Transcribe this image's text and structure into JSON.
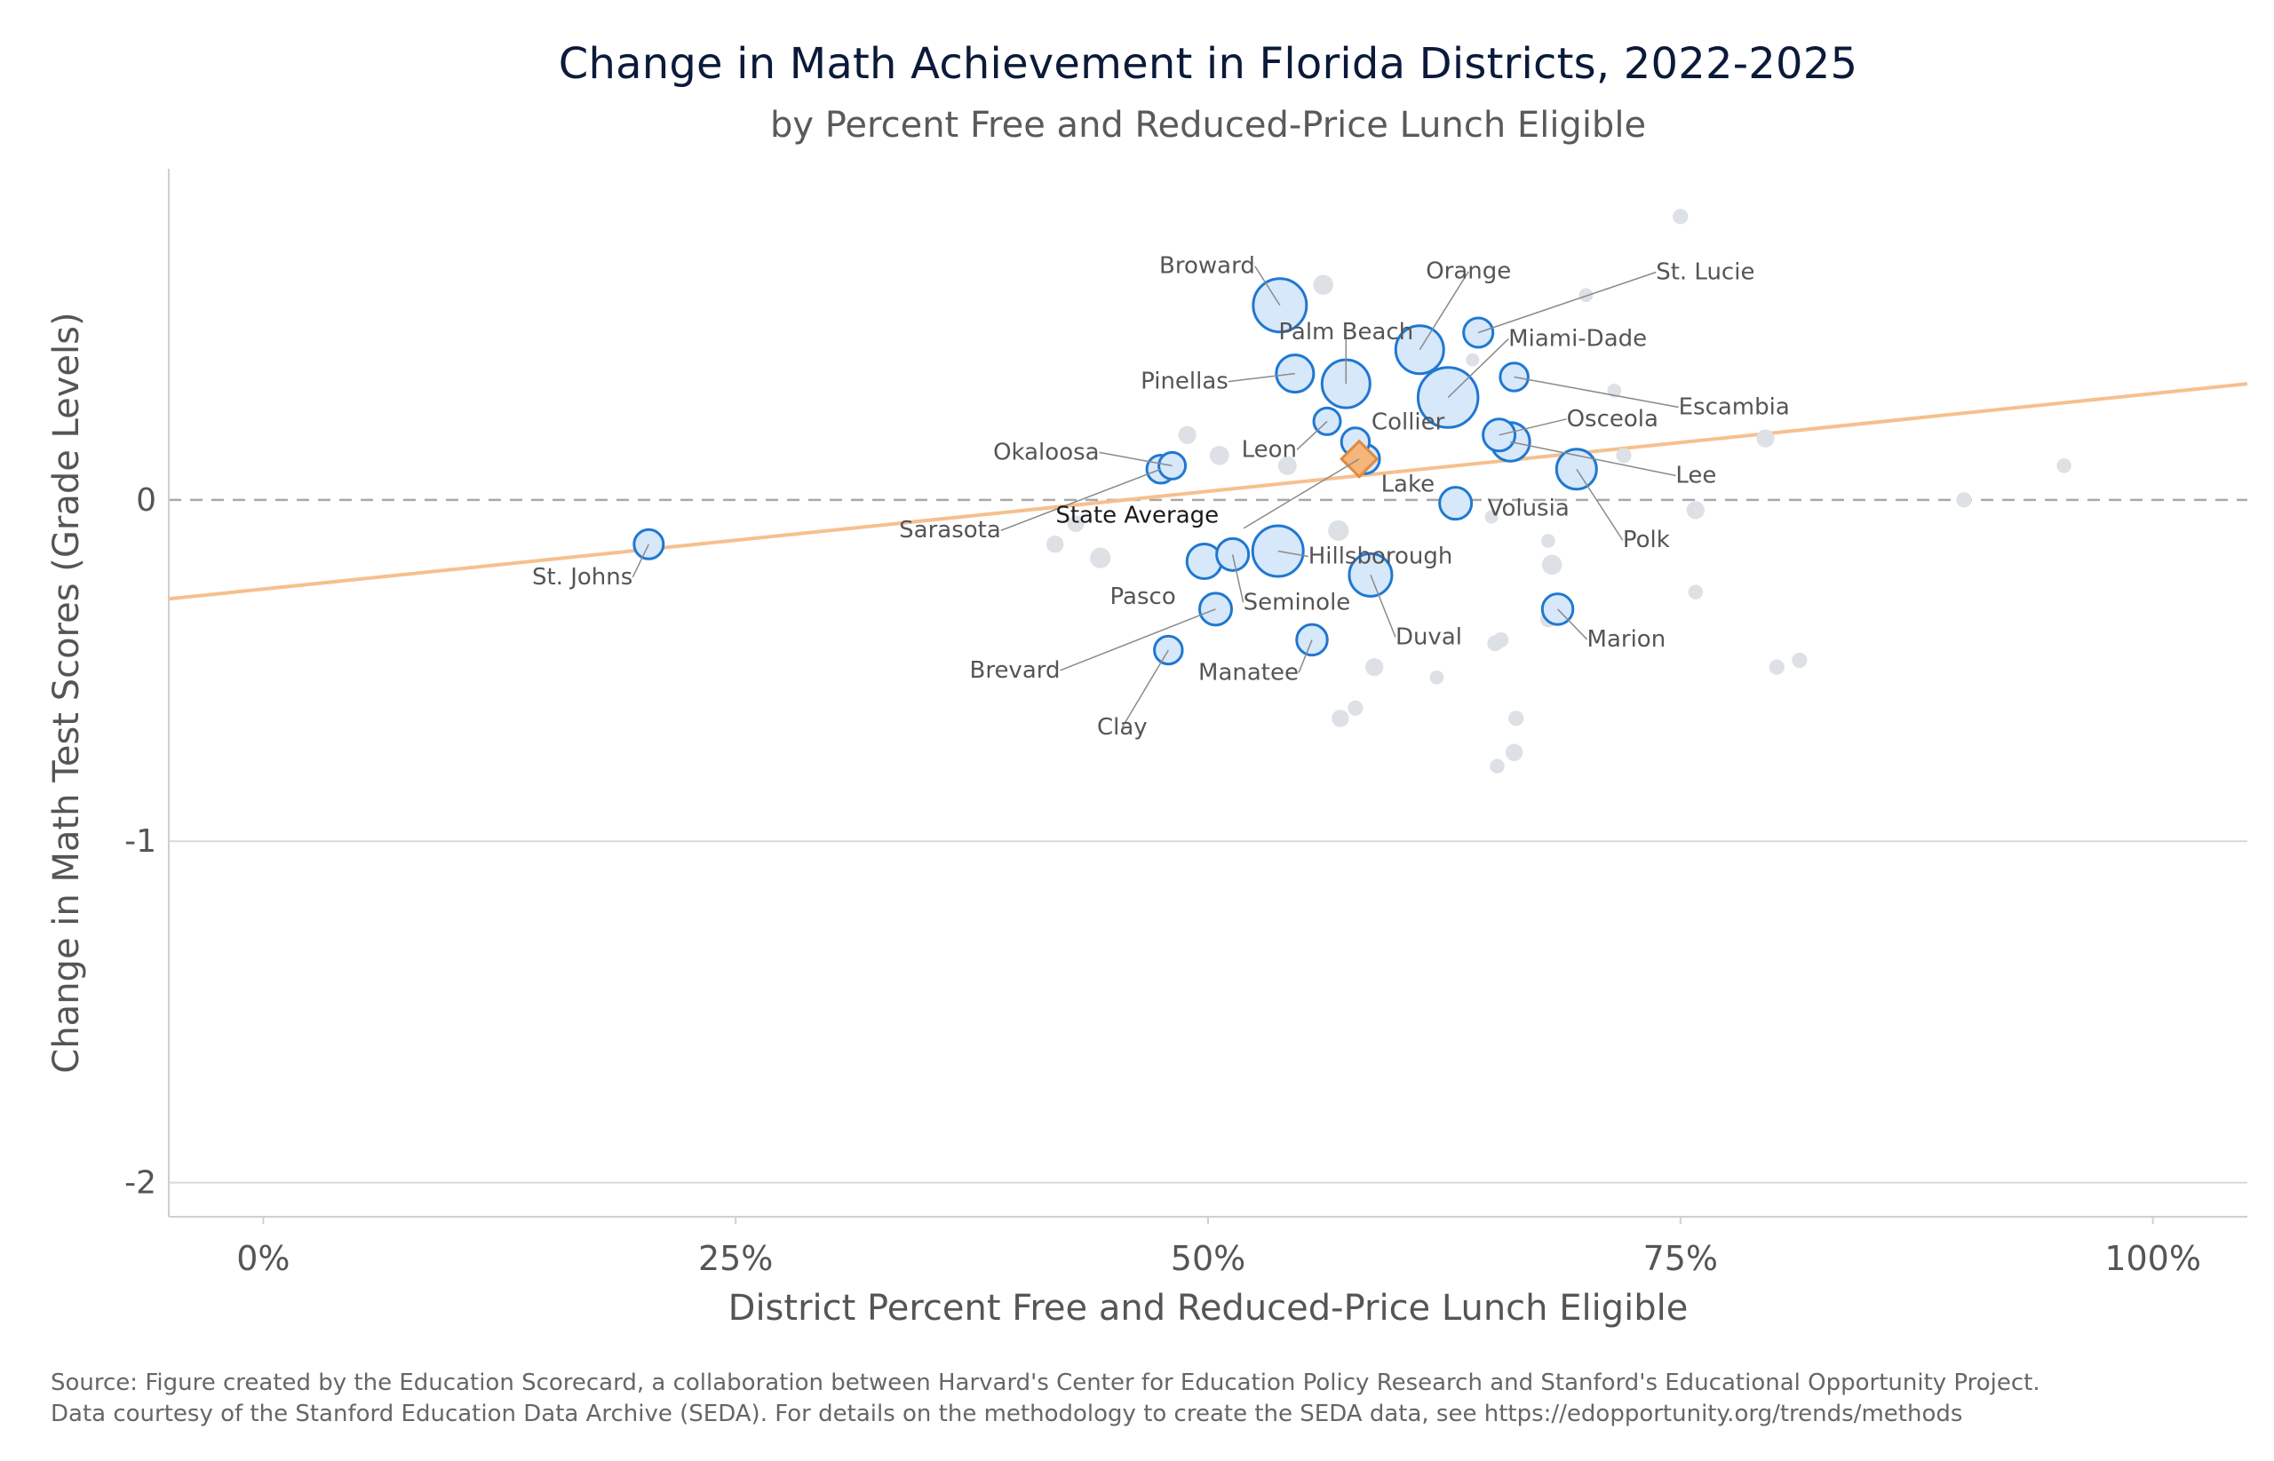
{
  "chart_data": {
    "type": "scatter",
    "title": "Change in Math Achievement in Florida Districts, 2022-2025",
    "subtitle": "by Percent Free and Reduced-Price Lunch Eligible",
    "xlabel": "District Percent Free and Reduced-Price Lunch Eligible",
    "ylabel": "Change in Math Test Scores (Grade Levels)",
    "xlim": [
      -0.05,
      1.05
    ],
    "ylim": [
      -2.1,
      0.97
    ],
    "xticks": [
      {
        "value": 0,
        "label": "0%"
      },
      {
        "value": 0.25,
        "label": "25%"
      },
      {
        "value": 0.5,
        "label": "50%"
      },
      {
        "value": 0.75,
        "label": "75%"
      },
      {
        "value": 1.0,
        "label": "100%"
      }
    ],
    "yticks": [
      {
        "value": 0,
        "label": "0"
      },
      {
        "value": -1,
        "label": "-1"
      },
      {
        "value": -2,
        "label": "-2"
      }
    ],
    "grid": "horizontal",
    "zero_line": "dashed",
    "trend_line": {
      "x": [
        -0.05,
        1.05
      ],
      "y": [
        -0.29,
        0.34
      ],
      "color": "#f5c08f"
    },
    "colors": {
      "highlight_fill": "#d7e8fa",
      "highlight_stroke": "#1f78d1",
      "other_fill": "#dde1e6",
      "state_fill": "#f5b67c",
      "state_stroke": "#e08a3c",
      "title": "#0b1a3a"
    },
    "highlighted_districts": [
      {
        "name": "Broward",
        "x": 0.538,
        "y": 0.57,
        "size": 3.2
      },
      {
        "name": "Orange",
        "x": 0.612,
        "y": 0.44,
        "size": 2.8
      },
      {
        "name": "St. Lucie",
        "x": 0.643,
        "y": 0.49,
        "size": 1.4
      },
      {
        "name": "Palm Beach",
        "x": 0.573,
        "y": 0.34,
        "size": 2.8
      },
      {
        "name": "Miami-Dade",
        "x": 0.627,
        "y": 0.3,
        "size": 3.7
      },
      {
        "name": "Pinellas",
        "x": 0.546,
        "y": 0.37,
        "size": 2.0
      },
      {
        "name": "Escambia",
        "x": 0.662,
        "y": 0.36,
        "size": 1.3
      },
      {
        "name": "Collier",
        "x": 0.578,
        "y": 0.17,
        "size": 1.3
      },
      {
        "name": "Leon",
        "x": 0.563,
        "y": 0.23,
        "size": 1.2
      },
      {
        "name": "Osceola",
        "x": 0.654,
        "y": 0.19,
        "size": 1.6
      },
      {
        "name": "Lee",
        "x": 0.66,
        "y": 0.17,
        "size": 2.1
      },
      {
        "name": "Okaloosa",
        "x": 0.481,
        "y": 0.1,
        "size": 1.2
      },
      {
        "name": "Sarasota",
        "x": 0.475,
        "y": 0.09,
        "size": 1.3
      },
      {
        "name": "Lake",
        "x": 0.583,
        "y": 0.12,
        "size": 1.4
      },
      {
        "name": "Polk",
        "x": 0.695,
        "y": 0.09,
        "size": 2.2
      },
      {
        "name": "Volusia",
        "x": 0.631,
        "y": -0.01,
        "size": 1.6
      },
      {
        "name": "St. Johns",
        "x": 0.204,
        "y": -0.13,
        "size": 1.4
      },
      {
        "name": "Pasco",
        "x": 0.498,
        "y": -0.18,
        "size": 1.8
      },
      {
        "name": "Seminole",
        "x": 0.513,
        "y": -0.16,
        "size": 1.6
      },
      {
        "name": "Hillsborough",
        "x": 0.537,
        "y": -0.15,
        "size": 3.0
      },
      {
        "name": "Duval",
        "x": 0.586,
        "y": -0.22,
        "size": 2.4
      },
      {
        "name": "Brevard",
        "x": 0.504,
        "y": -0.32,
        "size": 1.6
      },
      {
        "name": "Manatee",
        "x": 0.555,
        "y": -0.41,
        "size": 1.5
      },
      {
        "name": "Clay",
        "x": 0.479,
        "y": -0.44,
        "size": 1.3
      },
      {
        "name": "Marion",
        "x": 0.685,
        "y": -0.32,
        "size": 1.5
      }
    ],
    "state_average": {
      "name": "State Average",
      "x": 0.58,
      "y": 0.12
    },
    "other_districts": [
      {
        "x": 0.75,
        "y": 0.83,
        "size": 0.35
      },
      {
        "x": 0.561,
        "y": 0.63,
        "size": 0.7
      },
      {
        "x": 0.7,
        "y": 0.6,
        "size": 0.25
      },
      {
        "x": 0.64,
        "y": 0.41,
        "size": 0.2
      },
      {
        "x": 0.715,
        "y": 0.32,
        "size": 0.25
      },
      {
        "x": 0.489,
        "y": 0.19,
        "size": 0.55
      },
      {
        "x": 0.506,
        "y": 0.13,
        "size": 0.65
      },
      {
        "x": 0.542,
        "y": 0.1,
        "size": 0.6
      },
      {
        "x": 0.795,
        "y": 0.18,
        "size": 0.55
      },
      {
        "x": 0.72,
        "y": 0.13,
        "size": 0.35
      },
      {
        "x": 0.953,
        "y": 0.1,
        "size": 0.3
      },
      {
        "x": 0.9,
        "y": 0.0,
        "size": 0.35
      },
      {
        "x": 0.758,
        "y": -0.03,
        "size": 0.55
      },
      {
        "x": 0.65,
        "y": -0.05,
        "size": 0.2
      },
      {
        "x": 0.569,
        "y": -0.09,
        "size": 0.75
      },
      {
        "x": 0.43,
        "y": -0.07,
        "size": 0.45
      },
      {
        "x": 0.419,
        "y": -0.13,
        "size": 0.5
      },
      {
        "x": 0.443,
        "y": -0.17,
        "size": 0.75
      },
      {
        "x": 0.68,
        "y": -0.12,
        "size": 0.25
      },
      {
        "x": 0.682,
        "y": -0.19,
        "size": 0.7
      },
      {
        "x": 0.758,
        "y": -0.27,
        "size": 0.3
      },
      {
        "x": 0.68,
        "y": -0.35,
        "size": 0.4
      },
      {
        "x": 0.655,
        "y": -0.41,
        "size": 0.35
      },
      {
        "x": 0.652,
        "y": -0.42,
        "size": 0.4
      },
      {
        "x": 0.588,
        "y": -0.49,
        "size": 0.55
      },
      {
        "x": 0.621,
        "y": -0.52,
        "size": 0.25
      },
      {
        "x": 0.801,
        "y": -0.49,
        "size": 0.35
      },
      {
        "x": 0.813,
        "y": -0.47,
        "size": 0.35
      },
      {
        "x": 0.578,
        "y": -0.61,
        "size": 0.35
      },
      {
        "x": 0.57,
        "y": -0.64,
        "size": 0.5
      },
      {
        "x": 0.663,
        "y": -0.64,
        "size": 0.35
      },
      {
        "x": 0.662,
        "y": -0.74,
        "size": 0.5
      },
      {
        "x": 0.653,
        "y": -0.78,
        "size": 0.3
      }
    ]
  },
  "source": {
    "line1": "Source: Figure created by the Education Scorecard, a collaboration between Harvard's Center for Education Policy Research and Stanford's Educational Opportunity Project.",
    "line2": "Data courtesy of the Stanford Education Data Archive (SEDA). For details on the methodology to create the SEDA data, see https://edopportunity.org/trends/methods"
  }
}
